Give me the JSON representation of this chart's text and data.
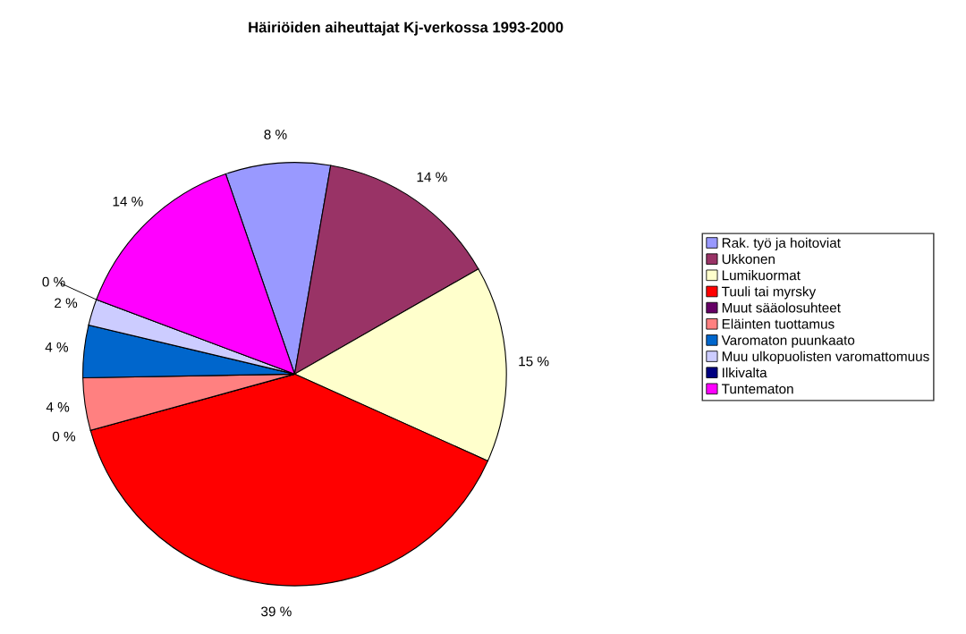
{
  "chart_data": {
    "type": "pie",
    "title": "Häiriöiden aiheuttajat Kj-verkossa 1993-2000",
    "categories": [
      "Rak. työ ja hoitoviat",
      "Ukkonen",
      "Lumikuormat",
      "Tuuli tai myrsky",
      "Muut sääolosuhteet",
      "Eläinten tuottamus",
      "Varomaton puunkaato",
      "Muu ulkopuolisten varomattomuus",
      "Ilkivalta",
      "Tuntematon"
    ],
    "values": [
      8,
      14,
      15,
      39,
      0,
      4,
      4,
      2,
      0,
      14
    ],
    "value_labels": [
      "8 %",
      "14 %",
      "15 %",
      "39 %",
      "0 %",
      "4 %",
      "4 %",
      "2 %",
      "0 %",
      "14 %"
    ],
    "colors": [
      "#9999ff",
      "#993366",
      "#ffffcc",
      "#ff0000",
      "#660066",
      "#ff8080",
      "#0066cc",
      "#ccccff",
      "#000080",
      "#ff00ff"
    ],
    "legend": "right"
  }
}
